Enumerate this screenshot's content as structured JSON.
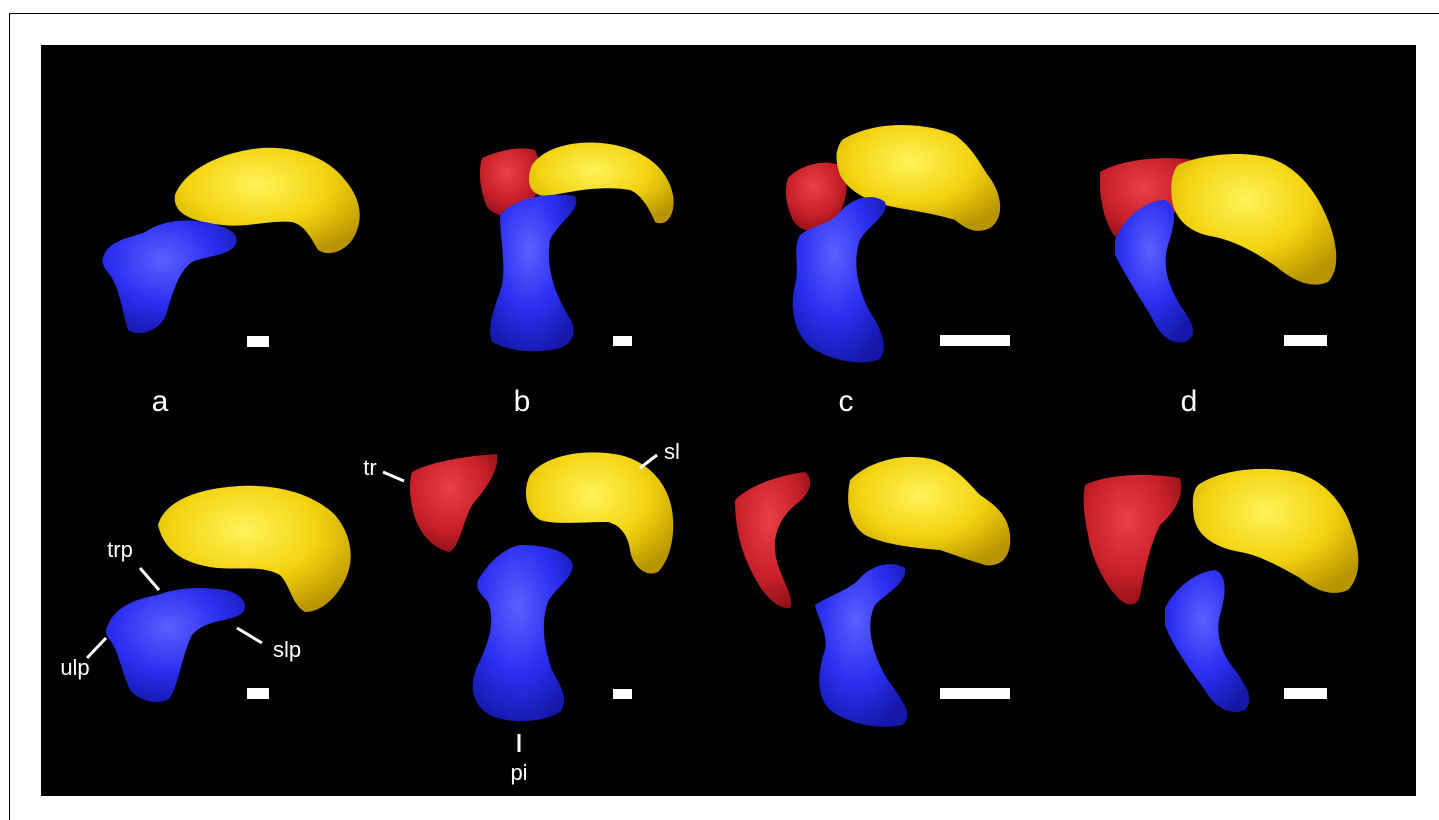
{
  "figure": {
    "background_color": "#000000",
    "bone_colors": {
      "trapezium": "#c8202a",
      "scapholunate": "#f2d310",
      "pisiform": "#2b2ff0",
      "scale_bar": "#ffffff"
    },
    "panels": [
      {
        "letter": "a"
      },
      {
        "letter": "b"
      },
      {
        "letter": "c"
      },
      {
        "letter": "d"
      }
    ],
    "annotations": {
      "tr": "tr",
      "sl": "sl",
      "trp": "trp",
      "ulp": "ulp",
      "slp": "slp",
      "pi": "pi"
    }
  }
}
